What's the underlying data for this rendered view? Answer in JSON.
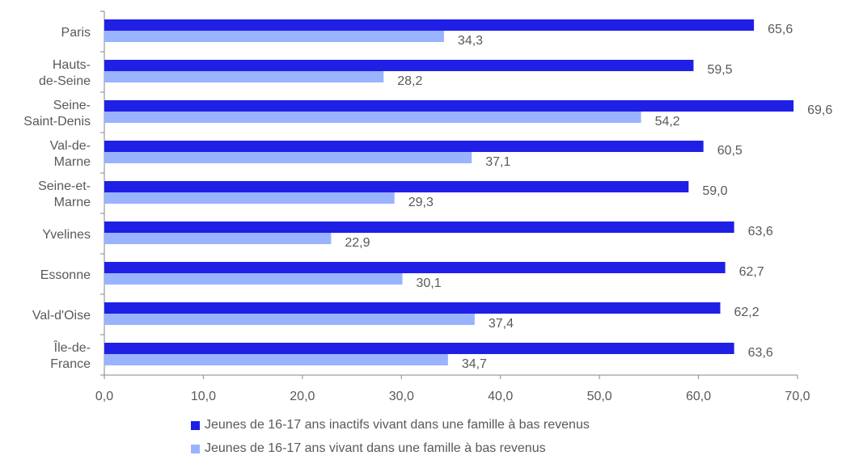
{
  "chart_data": {
    "type": "bar",
    "orientation": "horizontal",
    "categories": [
      [
        "Paris"
      ],
      [
        "Hauts-",
        "de-Seine"
      ],
      [
        "Seine-",
        "Saint-Denis"
      ],
      [
        "Val-de-",
        "Marne"
      ],
      [
        "Seine-et-",
        "Marne"
      ],
      [
        "Yvelines"
      ],
      [
        "Essonne"
      ],
      [
        "Val-d'Oise"
      ],
      [
        "Île-de-",
        "France"
      ]
    ],
    "series": [
      {
        "name": "Jeunes de 16-17 ans inactifs vivant dans une famille à bas revenus",
        "color": "#1f1fe6",
        "values": [
          65.6,
          59.5,
          69.6,
          60.5,
          59.0,
          63.6,
          62.7,
          62.2,
          63.6
        ],
        "labels": [
          "65,6",
          "59,5",
          "69,6",
          "60,5",
          "59,0",
          "63,6",
          "62,7",
          "62,2",
          "63,6"
        ]
      },
      {
        "name": "Jeunes de 16-17 ans vivant dans une famille à bas revenus",
        "color": "#99b3ff",
        "values": [
          34.3,
          28.2,
          54.2,
          37.1,
          29.3,
          22.9,
          30.1,
          37.4,
          34.7
        ],
        "labels": [
          "34,3",
          "28,2",
          "54,2",
          "37,1",
          "29,3",
          "22,9",
          "30,1",
          "37,4",
          "34,7"
        ]
      }
    ],
    "xlim": [
      0,
      70
    ],
    "xticks": [
      "0,0",
      "10,0",
      "20,0",
      "30,0",
      "40,0",
      "50,0",
      "60,0",
      "70,0"
    ],
    "grid": false,
    "legend_position": "bottom"
  }
}
